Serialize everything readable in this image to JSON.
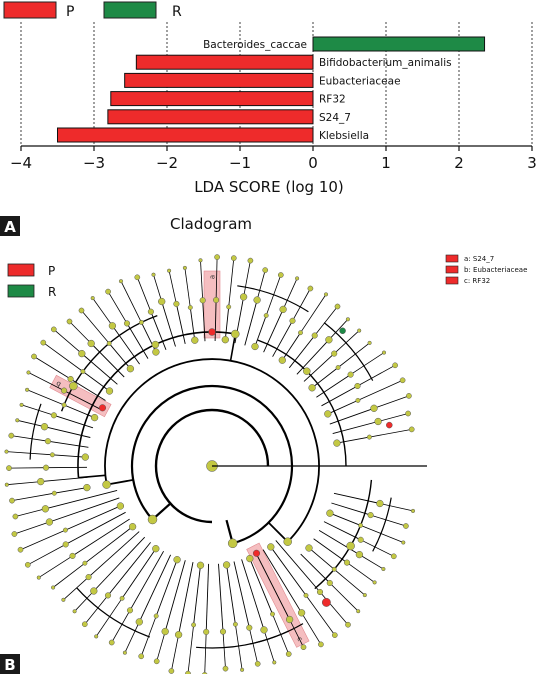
{
  "panels": {
    "a": {
      "letter": "A"
    },
    "b": {
      "letter": "B"
    }
  },
  "colors": {
    "P": "#ee2b2b",
    "R": "#1e8a46",
    "node": "#c3c843",
    "branch": "#000000",
    "highlight": "#f2a8ab"
  },
  "chart_data": [
    {
      "type": "bar",
      "orientation": "horizontal",
      "legend": [
        {
          "label": "P",
          "color": "#ee2b2b"
        },
        {
          "label": "R",
          "color": "#1e8a46"
        }
      ],
      "legend_position": "top-left",
      "categories": [
        "Bacteroides_caccae",
        "Bifidobacterium_animalis",
        "Eubacteriaceae",
        "RF32",
        "S24_7",
        "Klebsiella"
      ],
      "values": [
        2.35,
        -2.42,
        -2.58,
        -2.77,
        -2.81,
        -3.5
      ],
      "groups": [
        "R",
        "P",
        "P",
        "P",
        "P",
        "P"
      ],
      "xlabel": "LDA SCORE (log 10)",
      "xticks": [
        "−4",
        "−3",
        "−2",
        "−1",
        "0",
        "1",
        "2",
        "3"
      ],
      "xlim": [
        -4,
        3
      ],
      "grid": "vertical dashed"
    },
    {
      "type": "cladogram",
      "title": "Cladogram",
      "legend": [
        {
          "label": "P",
          "color": "#ee2b2b"
        },
        {
          "label": "R",
          "color": "#1e8a46"
        }
      ],
      "legend_position": "top-left",
      "clade_key": [
        {
          "text": "a: S24_7",
          "letter": "a",
          "color": "#ee2b2b"
        },
        {
          "text": "b: Eubacteriaceae",
          "letter": "b",
          "color": "#ee2b2b"
        },
        {
          "text": "c: RF32",
          "letter": "c",
          "color": "#ee2b2b"
        }
      ],
      "clade_key_position": "top-right",
      "highlighted_clades": [
        "a",
        "b",
        "c"
      ]
    }
  ]
}
